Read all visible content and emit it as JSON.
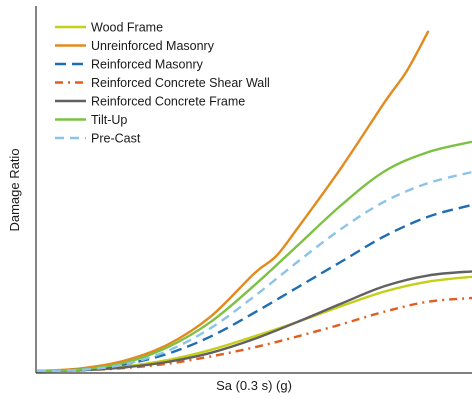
{
  "chart_data": {
    "type": "line",
    "title": "",
    "xlabel": "Sa (0.3 s) (g)",
    "ylabel": "Damage Ratio",
    "x_ticks_shown": false,
    "y_ticks_shown": false,
    "grid": false,
    "legend_position": "top-left",
    "xlim": [
      0,
      1
    ],
    "ylim": [
      0,
      1
    ],
    "series": [
      {
        "name": "Wood Frame",
        "color": "#c5cf16",
        "dash": "solid",
        "x": [
          0,
          0.1,
          0.2,
          0.3,
          0.4,
          0.5,
          0.6,
          0.7,
          0.8,
          0.9,
          1.0
        ],
        "y": [
          0,
          0.003,
          0.012,
          0.03,
          0.058,
          0.095,
          0.135,
          0.178,
          0.218,
          0.245,
          0.258
        ]
      },
      {
        "name": "Unreinforced Masonry",
        "color": "#e38a1d",
        "dash": "solid",
        "x": [
          0,
          0.1,
          0.2,
          0.3,
          0.4,
          0.5,
          0.55,
          0.6,
          0.7,
          0.8,
          0.85,
          0.9
        ],
        "y": [
          0,
          0.007,
          0.028,
          0.072,
          0.15,
          0.268,
          0.315,
          0.393,
          0.558,
          0.738,
          0.822,
          0.932
        ]
      },
      {
        "name": "Reinforced Masonry",
        "color": "#1f6eb4",
        "dash": "long-dash",
        "x": [
          0,
          0.1,
          0.2,
          0.3,
          0.4,
          0.5,
          0.6,
          0.7,
          0.8,
          0.9,
          1.0
        ],
        "y": [
          0,
          0.004,
          0.018,
          0.047,
          0.095,
          0.16,
          0.23,
          0.3,
          0.37,
          0.423,
          0.455
        ]
      },
      {
        "name": "Reinforced Concrete Shear Wall",
        "color": "#e25d1e",
        "dash": "dash-dot",
        "x": [
          0,
          0.1,
          0.2,
          0.3,
          0.4,
          0.5,
          0.6,
          0.7,
          0.8,
          0.9,
          1.0
        ],
        "y": [
          0,
          0.002,
          0.008,
          0.02,
          0.04,
          0.065,
          0.095,
          0.128,
          0.163,
          0.19,
          0.2
        ]
      },
      {
        "name": "Reinforced Concrete Frame",
        "color": "#616161",
        "dash": "solid",
        "x": [
          0,
          0.1,
          0.2,
          0.3,
          0.4,
          0.5,
          0.6,
          0.7,
          0.8,
          0.9,
          1.0
        ],
        "y": [
          0,
          0.002,
          0.01,
          0.025,
          0.05,
          0.088,
          0.135,
          0.185,
          0.233,
          0.262,
          0.273
        ]
      },
      {
        "name": "Tilt-Up",
        "color": "#7cc242",
        "dash": "solid",
        "x": [
          0,
          0.1,
          0.2,
          0.3,
          0.4,
          0.5,
          0.6,
          0.7,
          0.8,
          0.9,
          1.0
        ],
        "y": [
          0,
          0.004,
          0.022,
          0.065,
          0.135,
          0.235,
          0.345,
          0.455,
          0.548,
          0.6,
          0.628
        ]
      },
      {
        "name": "Pre-Cast",
        "color": "#8cc3e8",
        "dash": "dash",
        "x": [
          0,
          0.1,
          0.2,
          0.3,
          0.4,
          0.5,
          0.6,
          0.7,
          0.8,
          0.9,
          1.0
        ],
        "y": [
          0,
          0.003,
          0.018,
          0.055,
          0.118,
          0.205,
          0.3,
          0.39,
          0.465,
          0.515,
          0.545
        ]
      }
    ]
  }
}
